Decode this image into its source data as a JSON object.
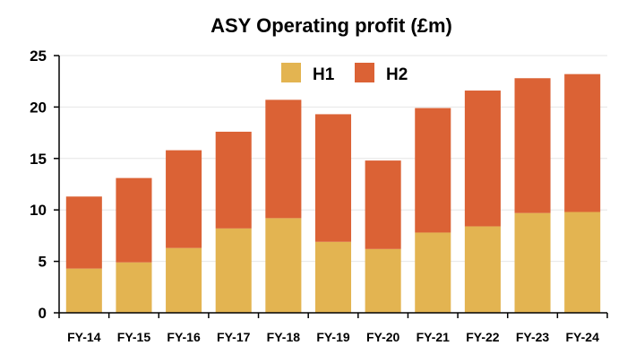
{
  "chart_data": {
    "type": "bar",
    "stacked": true,
    "title": "ASY Operating profit (£m)",
    "xlabel": "",
    "ylabel": "",
    "ylim": [
      0,
      25
    ],
    "yticks": [
      "0",
      "5",
      "10",
      "15",
      "20",
      "25"
    ],
    "categories": [
      "FY-14",
      "FY-15",
      "FY-16",
      "FY-17",
      "FY-18",
      "FY-19",
      "FY-20",
      "FY-21",
      "FY-22",
      "FY-23",
      "FY-24"
    ],
    "series": [
      {
        "name": "H1",
        "color": "#E3B451",
        "values": [
          4.3,
          4.9,
          6.3,
          8.2,
          9.2,
          6.9,
          6.2,
          7.8,
          8.4,
          9.7,
          9.8
        ]
      },
      {
        "name": "H2",
        "color": "#DB6235",
        "values": [
          7.0,
          8.2,
          9.5,
          9.4,
          11.5,
          12.4,
          8.6,
          12.1,
          13.2,
          13.1,
          13.4
        ]
      }
    ],
    "grid": true,
    "legend": "top-center",
    "gridColor": "#E6E6E6",
    "axisColor": "#000000"
  }
}
